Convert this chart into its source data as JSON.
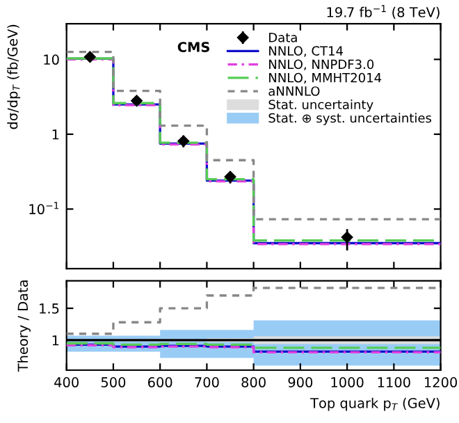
{
  "chart_data": [
    {
      "type": "step",
      "ylabel": "dσ/dp$_{T}$ (fb/GeV)",
      "annotations": [
        "19.7 fb$^{−1}$ (8 TeV)",
        "CMS"
      ],
      "x": [
        400,
        500,
        600,
        700,
        800,
        1200
      ],
      "xlim": [
        400,
        1200
      ],
      "xticks": [
        400,
        500,
        600,
        700,
        800,
        900,
        1000,
        1100,
        1200
      ],
      "log": true,
      "ylim": [
        0.016,
        30
      ],
      "yticks": [
        {
          "value": 0.1,
          "label": "10$^{−1}$"
        },
        1,
        10
      ],
      "tick_labels": "y",
      "legend": "top right",
      "grid": false,
      "series": [
        {
          "type": "scatter",
          "name": "Data",
          "color": "#000000",
          "marker": "diamond",
          "x": [
            450,
            550,
            650,
            750,
            1000
          ],
          "values": [
            10.8,
            2.8,
            0.81,
            0.27,
            0.042
          ],
          "errors": [
            [
              10.2,
              11.4
            ],
            [
              2.6,
              3.0
            ],
            [
              0.67,
              0.96
            ],
            [
              0.22,
              0.31
            ],
            [
              0.028,
              0.054
            ]
          ]
        },
        {
          "name": "NNLO, CT14",
          "color": "#1010cc",
          "line_style": "solid",
          "values": [
            10.2,
            2.5,
            0.75,
            0.24,
            0.035,
            0.035
          ]
        },
        {
          "name": "NNLO, NNPDF3.0",
          "color": "#e040e0",
          "line_style": "dashdot",
          "values": [
            10.0,
            2.45,
            0.73,
            0.235,
            0.034,
            0.034
          ]
        },
        {
          "name": "NNLO, MMHT2014",
          "color": "#55cc55",
          "line_style": "dashed",
          "values": [
            10.3,
            2.6,
            0.77,
            0.25,
            0.038,
            0.038
          ]
        },
        {
          "name": "aNNNLO",
          "color": "#888888",
          "line_style": "dotted",
          "values": [
            12.6,
            3.8,
            1.3,
            0.45,
            0.073,
            0.073
          ]
        }
      ]
    },
    {
      "type": "step",
      "xlabel": "Top quark p$_{T}$ (GeV)",
      "ylabel": "Theory / Data",
      "x": [
        400,
        500,
        600,
        700,
        800,
        1200
      ],
      "xlim": [
        400,
        1200
      ],
      "xticks": [
        400,
        500,
        600,
        700,
        800,
        900,
        1000,
        1100,
        1200
      ],
      "ylim": [
        0.53,
        1.93
      ],
      "yticks": [
        1,
        1.5
      ],
      "grid": false,
      "ref_lines": [
        {
          "axis": "y",
          "value": 1,
          "color": "#000000"
        }
      ],
      "series": [
        {
          "type": "area",
          "name": "Stat. uncertainty",
          "color": "#dddddd",
          "values": [
            null,
            null,
            null,
            null,
            null,
            null
          ],
          "lower": [
            0.99,
            0.98,
            0.98,
            0.97,
            0.94,
            0.94
          ],
          "upper": [
            1.01,
            1.02,
            1.02,
            1.03,
            1.06,
            1.06
          ]
        },
        {
          "type": "area",
          "name": "Stat. ⊕ syst. uncertainties",
          "color": "#99ccf5",
          "values": [
            null,
            null,
            null,
            null,
            null,
            null
          ],
          "lower": [
            0.82,
            0.82,
            0.72,
            0.72,
            0.6,
            0.6
          ],
          "upper": [
            1.07,
            1.07,
            1.16,
            1.16,
            1.31,
            1.31
          ]
        },
        {
          "color": "#1010cc",
          "line_style": "solid",
          "values": [
            0.93,
            0.9,
            0.91,
            0.9,
            0.82,
            0.82
          ]
        },
        {
          "color": "#e040e0",
          "line_style": "dashdot",
          "values": [
            0.92,
            0.89,
            0.9,
            0.89,
            0.81,
            0.81
          ]
        },
        {
          "color": "#55cc55",
          "line_style": "dashed",
          "values": [
            0.95,
            0.93,
            0.94,
            0.93,
            0.88,
            0.88
          ]
        },
        {
          "color": "#888888",
          "line_style": "dotted",
          "values": [
            1.1,
            1.28,
            1.5,
            1.7,
            1.82,
            1.82
          ]
        }
      ]
    }
  ]
}
